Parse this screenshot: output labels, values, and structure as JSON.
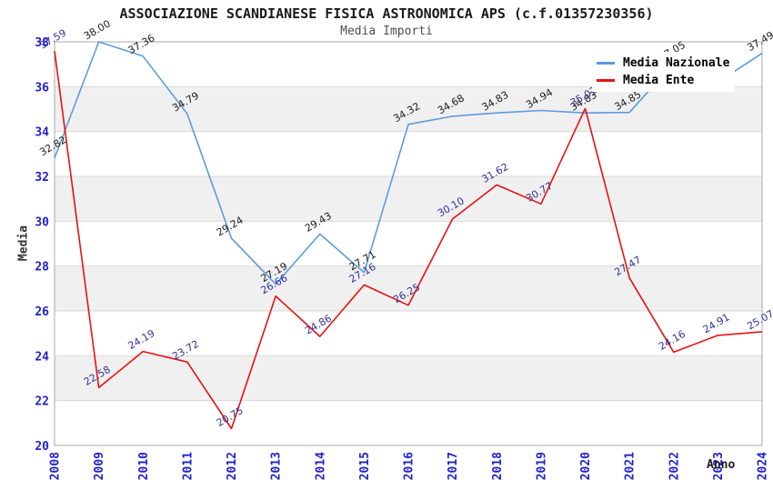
{
  "header": {
    "title": "ASSOCIAZIONE SCANDIANESE FISICA ASTRONOMICA APS (c.f.01357230356)",
    "subtitle": "Media Importi"
  },
  "legend": {
    "items": [
      {
        "label": "Media Nazionale",
        "color": "#5b9be0"
      },
      {
        "label": "Media Ente",
        "color": "#e81111"
      }
    ]
  },
  "axes": {
    "y_title": "Media",
    "x_title": "Anno",
    "tick_color": "#2121cd",
    "y_ticks": [
      20,
      22,
      24,
      26,
      28,
      30,
      32,
      34,
      36,
      38
    ],
    "x_ticks": [
      "2008",
      "2009",
      "2010",
      "2011",
      "2012",
      "2013",
      "2014",
      "2015",
      "2016",
      "2017",
      "2018",
      "2019",
      "2020",
      "2021",
      "2022",
      "2023",
      "2024"
    ]
  },
  "style": {
    "band_color": "#f0f0f0",
    "gridline_color": "#d9d9d9",
    "border_color": "#a9a9a9",
    "background": "#ffffff"
  },
  "chart_data": {
    "type": "line",
    "title": "ASSOCIAZIONE SCANDIANESE FISICA ASTRONOMICA APS (c.f.01357230356)",
    "subtitle": "Media Importi",
    "xlabel": "Anno",
    "ylabel": "Media",
    "ylim": [
      20,
      38
    ],
    "grid": true,
    "legend_position": "top-right",
    "x": [
      2008,
      2009,
      2010,
      2011,
      2012,
      2013,
      2014,
      2015,
      2016,
      2017,
      2018,
      2019,
      2020,
      2021,
      2022,
      2023,
      2024
    ],
    "series": [
      {
        "name": "Media Nazionale",
        "color": "#5b9be0",
        "label_color": "#1a1a1a",
        "values": [
          32.82,
          38.0,
          37.36,
          34.79,
          29.24,
          27.19,
          29.43,
          27.71,
          34.32,
          34.68,
          34.83,
          34.94,
          34.83,
          34.85,
          37.05,
          36.2,
          37.49
        ],
        "labels": [
          "32.82",
          "38.00",
          "37.36",
          "34.79",
          "29.24",
          "27.19",
          "29.43",
          "27.71",
          "34.32",
          "34.68",
          "34.83",
          "34.94",
          "34.83",
          "34.85",
          "37.05",
          null,
          "37.49"
        ]
      },
      {
        "name": "Media Ente",
        "color": "#e81111",
        "label_color": "#303099",
        "values": [
          37.59,
          22.58,
          24.19,
          23.72,
          20.75,
          26.66,
          24.86,
          27.16,
          26.25,
          30.1,
          31.62,
          30.77,
          35.03,
          27.47,
          24.16,
          24.91,
          25.07
        ],
        "labels": [
          "37.59",
          "22.58",
          "24.19",
          "23.72",
          "20.75",
          "26.66",
          "24.86",
          "27.16",
          "26.25",
          "30.10",
          "31.62",
          "30.77",
          "35.03",
          "27.47",
          "24.16",
          "24.91",
          "25.07"
        ]
      }
    ]
  }
}
